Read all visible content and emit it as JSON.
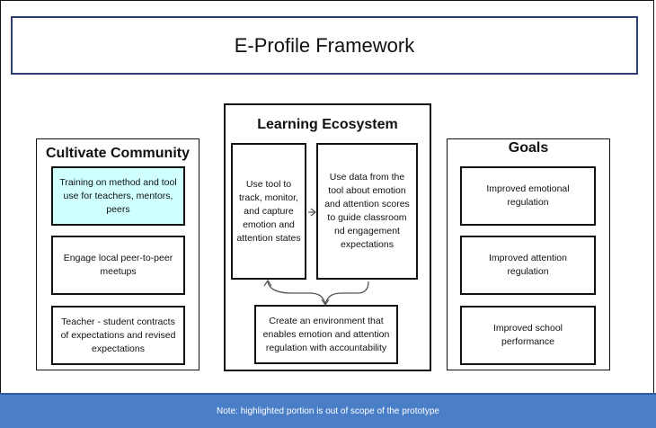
{
  "title": "E-Profile Framework",
  "cultivate": {
    "heading": "Cultivate Community",
    "items": [
      "Training on method and tool use for teachers, mentors, peers",
      "Engage local peer-to-peer meetups",
      "Teacher - student contracts of expectations and revised expectations"
    ]
  },
  "ecosystem": {
    "heading": "Learning Ecosystem",
    "tool": "Use tool to track, monitor, and capture emotion and attention states",
    "data": "Use data from the tool about emotion and attention scores to guide classroom nd engagement expectations",
    "environment": "Create an environment that enables emotion and attention regulation with accountability"
  },
  "goals": {
    "heading": "Goals",
    "items": [
      "Improved emotional regulation",
      "Improved attention regulation",
      "Improved school performance"
    ]
  },
  "footer": "Note: highlighted portion is out of scope of the prototype",
  "colors": {
    "highlight": "#cfffff",
    "title_border": "#2d3f74",
    "footer_bg": "#4a7fc8"
  }
}
